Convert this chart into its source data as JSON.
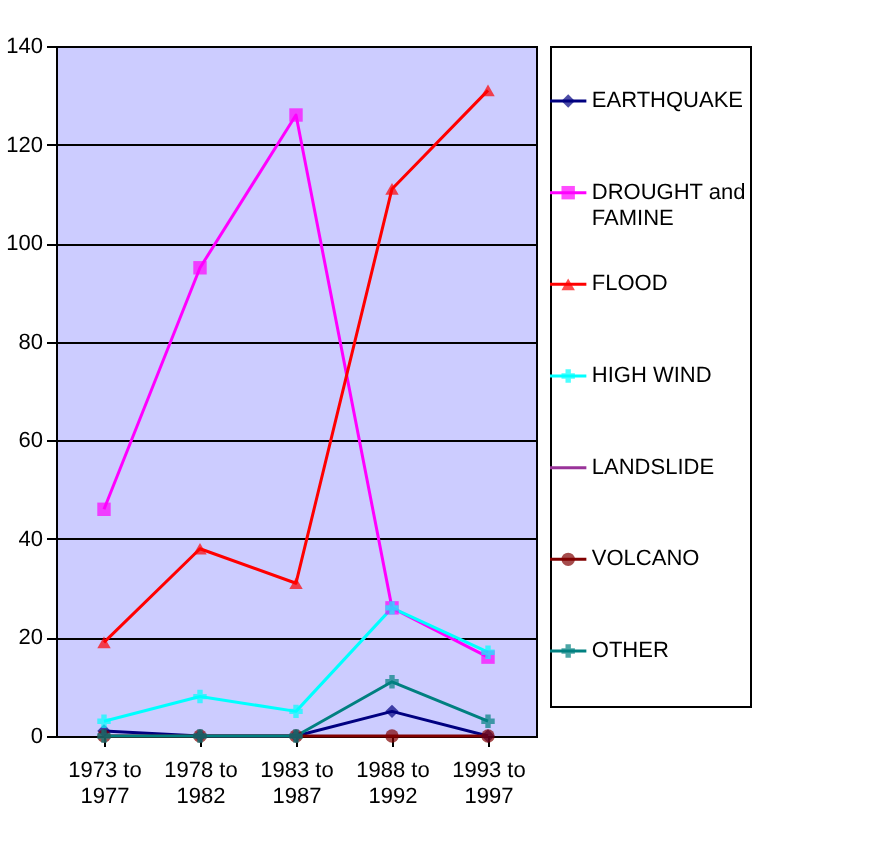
{
  "chart_data": {
    "type": "line",
    "categories": [
      "1973 to 1977",
      "1978 to 1982",
      "1983 to 1987",
      "1988 to 1992",
      "1993 to 1997"
    ],
    "series": [
      {
        "name": "EARTHQUAKE",
        "color": "#000080",
        "marker": "diamond",
        "values": [
          1,
          0,
          0,
          5,
          0
        ]
      },
      {
        "name": "DROUGHT and FAMINE",
        "color": "#ff00ff",
        "marker": "square",
        "values": [
          46,
          95,
          126,
          26,
          16
        ]
      },
      {
        "name": "FLOOD",
        "color": "#ff0000",
        "marker": "triangle",
        "values": [
          19,
          38,
          31,
          111,
          131
        ]
      },
      {
        "name": "HIGH WIND",
        "color": "#00ffff",
        "marker": "cross",
        "values": [
          3,
          8,
          5,
          26,
          17
        ]
      },
      {
        "name": "LANDSLIDE",
        "color": "#993399",
        "marker": "star",
        "values": [
          null,
          null,
          null,
          null,
          null
        ]
      },
      {
        "name": "VOLCANO",
        "color": "#800000",
        "marker": "circle",
        "values": [
          0,
          0,
          0,
          0,
          0
        ]
      },
      {
        "name": "OTHER",
        "color": "#008080",
        "marker": "cross",
        "values": [
          0,
          0,
          0,
          11,
          3
        ]
      }
    ],
    "ylim": [
      0,
      140
    ],
    "yticks": [
      0,
      20,
      40,
      60,
      80,
      100,
      120,
      140
    ],
    "grid": "y",
    "legend": "right",
    "line_style": "solid"
  }
}
